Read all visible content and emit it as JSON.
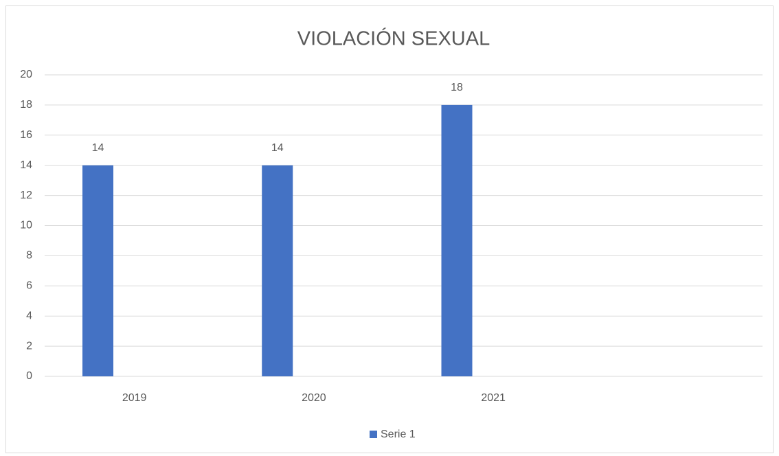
{
  "chart_data": {
    "type": "bar",
    "title": "VIOLACIÓN SEXUAL",
    "categories": [
      "2019",
      "2020",
      "2021",
      null
    ],
    "series": [
      {
        "name": "Serie 1",
        "color": "#4472c4",
        "values": [
          14,
          14,
          18,
          null
        ]
      }
    ],
    "ylim": [
      0,
      20
    ],
    "yticks": [
      0,
      2,
      4,
      6,
      8,
      10,
      12,
      14,
      16,
      18,
      20
    ],
    "grid": true,
    "legend": "bottom"
  }
}
